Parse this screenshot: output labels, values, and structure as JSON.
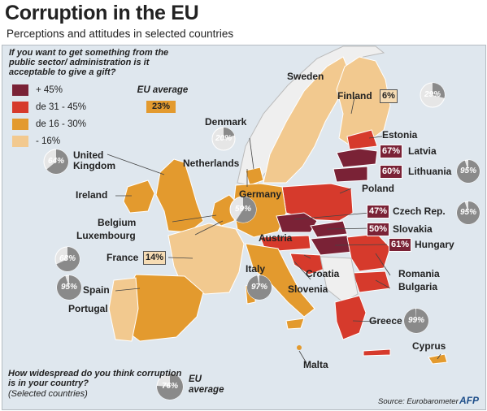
{
  "title": "Corruption in the EU",
  "subtitle": "Perceptions and attitudes in selected  countries",
  "question1": "If you want to get something from the public sector/ administration is it acceptable to give a gift?",
  "legend": [
    {
      "label": "+ 45%",
      "color": "#7a2236"
    },
    {
      "label": "de 31 - 45%",
      "color": "#d63a2c"
    },
    {
      "label": "de 16 - 30%",
      "color": "#e39a2e"
    },
    {
      "label": "- 16%",
      "color": "#f2c98f"
    }
  ],
  "eu_average_title": "EU average",
  "eu_average_value": "23%",
  "countries": {
    "sweden": "Sweden",
    "finland": "Finland",
    "estonia": "Estonia",
    "latvia": "Latvia",
    "lithuania": "Lithuania",
    "poland": "Poland",
    "denmark": "Denmark",
    "netherlands": "Netherlands",
    "uk": "United\nKingdom",
    "ireland": "Ireland",
    "germany": "Germany",
    "belgium": "Belgium",
    "luxembourg": "Luxembourg",
    "czech": "Czech Rep.",
    "slovakia": "Slovakia",
    "austria": "Austria",
    "hungary": "Hungary",
    "france": "France",
    "italy": "Italy",
    "croatia": "Croatia",
    "slovenia": "Slovenia",
    "romania": "Romania",
    "bulgaria": "Bulgaria",
    "spain": "Spain",
    "portugal": "Portugal",
    "greece": "Greece",
    "malta": "Malta",
    "cyprus": "Cyprus"
  },
  "gift_acceptable": {
    "finland": "6%",
    "latvia": "67%",
    "lithuania": "60%",
    "czech": "47%",
    "slovakia": "50%",
    "hungary": "61%",
    "france": "14%"
  },
  "corruption_widespread": {
    "finland": {
      "label": "29%",
      "value": 29
    },
    "denmark": {
      "label": "20%",
      "value": 20
    },
    "uk": {
      "label": "64%",
      "value": 64
    },
    "lithuania": {
      "label": "95%",
      "value": 95
    },
    "germany": {
      "label": "59%",
      "value": 59
    },
    "czech": {
      "label": "95%",
      "value": 95
    },
    "france": {
      "label": "68%",
      "value": 68
    },
    "spain": {
      "label": "95%",
      "value": 95
    },
    "italy": {
      "label": "97%",
      "value": 97
    },
    "greece": {
      "label": "99%",
      "value": 99
    },
    "eu_average": {
      "label": "76%",
      "value": 76
    }
  },
  "question2": "How widespread do you think corruption is in your country?",
  "question2_sub": "(Selected countries)",
  "eu_average2": "EU\naverage",
  "source": "Source: Eurobarometer",
  "logo": "AFP"
}
